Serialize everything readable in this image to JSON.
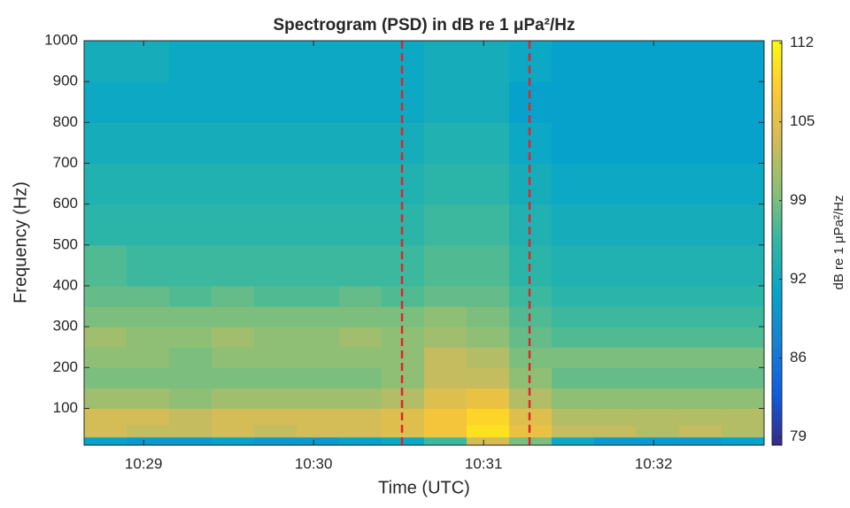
{
  "chart_data": {
    "type": "heatmap",
    "title": "Spectrogram (PSD) in dB re 1 μPa²/Hz",
    "x_label": "Time (UTC)",
    "y_label": "Frequency (Hz)",
    "colorbar_label": "dB re 1 μPa²/Hz",
    "x_bins": [
      628.65,
      628.9,
      629.15,
      629.4,
      629.65,
      629.9,
      630.15,
      630.4,
      630.65,
      630.9,
      631.15,
      631.4,
      631.65,
      631.9,
      632.15,
      632.4,
      632.65
    ],
    "y_bins": [
      10,
      30,
      60,
      100,
      150,
      200,
      250,
      300,
      350,
      400,
      500,
      600,
      700,
      800,
      900,
      1000
    ],
    "values": [
      [
        91,
        90,
        90,
        91,
        90,
        90,
        91,
        92,
        96,
        104,
        99,
        92,
        90,
        90,
        90,
        91
      ],
      [
        104,
        103,
        103,
        104,
        103,
        104,
        104,
        105,
        107,
        110,
        106,
        103,
        103,
        102,
        103,
        102
      ],
      [
        104,
        104,
        103,
        104,
        104,
        104,
        104,
        105,
        107,
        109,
        105,
        102,
        102,
        102,
        102,
        102
      ],
      [
        101,
        101,
        100,
        101,
        101,
        101,
        101,
        102,
        105,
        106,
        102,
        100,
        100,
        100,
        100,
        100
      ],
      [
        99,
        99,
        99,
        99,
        99,
        99,
        99,
        100,
        103,
        103,
        100,
        98,
        98,
        98,
        98,
        98
      ],
      [
        100,
        100,
        99,
        100,
        100,
        100,
        100,
        100,
        103,
        102,
        99,
        99,
        99,
        99,
        99,
        99
      ],
      [
        101,
        100,
        100,
        101,
        100,
        100,
        101,
        100,
        101,
        100,
        98,
        97,
        97,
        97,
        97,
        97
      ],
      [
        99,
        99,
        99,
        99,
        99,
        99,
        99,
        99,
        100,
        99,
        97,
        96,
        96,
        96,
        96,
        96
      ],
      [
        98,
        98,
        97,
        98,
        97,
        97,
        98,
        97,
        98,
        98,
        96,
        95,
        95,
        95,
        95,
        95
      ],
      [
        97,
        96,
        96,
        96,
        96,
        96,
        96,
        96,
        97,
        97,
        95,
        94,
        94,
        94,
        94,
        94
      ],
      [
        95,
        95,
        95,
        95,
        95,
        95,
        95,
        95,
        96,
        96,
        94,
        93,
        93,
        93,
        93,
        93
      ],
      [
        94,
        94,
        94,
        94,
        94,
        94,
        94,
        94,
        95,
        95,
        93,
        92,
        92,
        92,
        92,
        92
      ],
      [
        93,
        93,
        93,
        93,
        93,
        93,
        93,
        93,
        94,
        94,
        92,
        91,
        91,
        91,
        91,
        91
      ],
      [
        92,
        92,
        92,
        92,
        92,
        92,
        92,
        92,
        93,
        93,
        91,
        91,
        91,
        91,
        91,
        91
      ],
      [
        93,
        93,
        92,
        92,
        92,
        92,
        92,
        92,
        93,
        93,
        92,
        91,
        91,
        91,
        91,
        91
      ]
    ],
    "xlim": [
      628.65,
      632.65
    ],
    "xticks": [
      {
        "value": 629,
        "label": "10:29"
      },
      {
        "value": 630,
        "label": "10:30"
      },
      {
        "value": 631,
        "label": "10:31"
      },
      {
        "value": 632,
        "label": "10:32"
      }
    ],
    "ylim": [
      10,
      1000
    ],
    "yticks": [
      100,
      200,
      300,
      400,
      500,
      600,
      700,
      800,
      900,
      1000
    ],
    "clim": [
      78.7,
      112.1
    ],
    "cticks": [
      {
        "value": 79.4,
        "label": "79"
      },
      {
        "value": 85.9,
        "label": "86"
      },
      {
        "value": 92.4,
        "label": "92"
      },
      {
        "value": 98.9,
        "label": "99"
      },
      {
        "value": 105.4,
        "label": "105"
      },
      {
        "value": 111.9,
        "label": "112"
      }
    ],
    "colormap": [
      "#352a87",
      "#0f5cdd",
      "#1481d6",
      "#06a4ca",
      "#2eb7a4",
      "#87bf77",
      "#d1bb59",
      "#fec832",
      "#f9fb0e"
    ],
    "vlines": [
      {
        "x": 630.52,
        "color": "#e0262b"
      },
      {
        "x": 631.27,
        "color": "#e0262b"
      }
    ]
  }
}
